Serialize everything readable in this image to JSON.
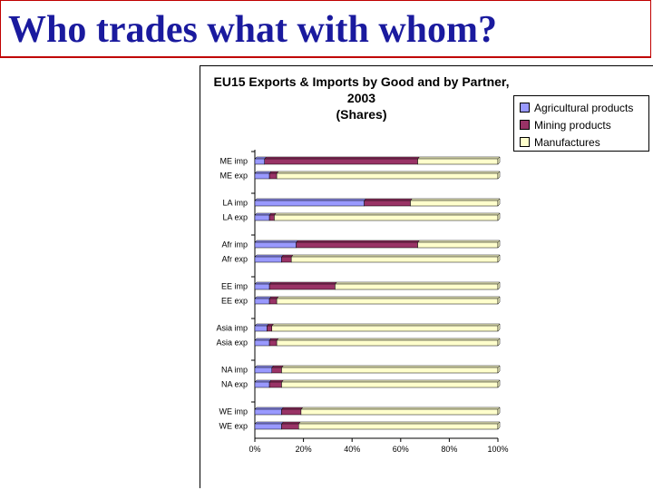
{
  "slide": {
    "title": "Who trades what with whom?"
  },
  "chart_data": {
    "type": "bar",
    "orientation": "horizontal",
    "stacked": true,
    "title": "EU15 Exports & Imports by Good and by Partner, 2003",
    "subtitle": "(Shares)",
    "categories": [
      "ME imp",
      "ME exp",
      "LA imp",
      "LA exp",
      "Afr imp",
      "Afr exp",
      "EE imp",
      "EE exp",
      "Asia imp",
      "Asia exp",
      "NA imp",
      "NA exp",
      "WE imp",
      "WE exp"
    ],
    "series": [
      {
        "name": "Agricultural products",
        "color": "#9999ff",
        "values": [
          4,
          6,
          45,
          6,
          17,
          11,
          6,
          6,
          5,
          6,
          7,
          6,
          11,
          11
        ]
      },
      {
        "name": "Mining products",
        "color": "#993366",
        "values": [
          63,
          3,
          19,
          2,
          50,
          4,
          27,
          3,
          2,
          3,
          4,
          5,
          8,
          7
        ]
      },
      {
        "name": "Manufactures",
        "color": "#ffffcc",
        "values": [
          33,
          91,
          36,
          92,
          33,
          85,
          67,
          91,
          93,
          91,
          89,
          89,
          81,
          82
        ]
      }
    ],
    "x_ticks": [
      "0%",
      "20%",
      "40%",
      "60%",
      "80%",
      "100%"
    ],
    "xlim": [
      0,
      100
    ],
    "legend": "top-right",
    "grid": false
  }
}
